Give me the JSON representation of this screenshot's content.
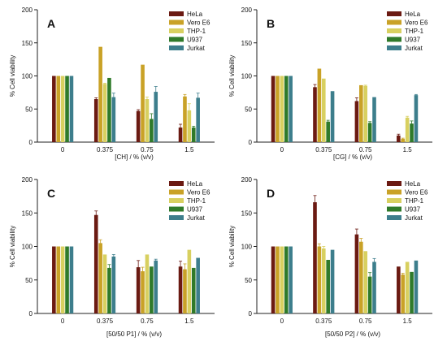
{
  "colors": {
    "HeLa": "#6b1a12",
    "Vero E6": "#c9a227",
    "THP-1": "#d8d060",
    "U937": "#2f7a2a",
    "Jurkat": "#3d7e8c"
  },
  "chart_data": [
    {
      "type": "bar",
      "panel_label": "A",
      "categories": [
        "0",
        "0.375",
        "0.75",
        "1.5"
      ],
      "xlabel": "[CH] / % (v/v)",
      "ylabel": "% Cell viability",
      "ylim": [
        0,
        200
      ],
      "yticks": [
        0,
        50,
        100,
        150,
        200
      ],
      "legend_position": "top-right",
      "series": [
        {
          "name": "HeLa",
          "values": [
            100,
            65,
            47,
            22
          ],
          "errors": [
            0,
            2,
            2,
            5
          ]
        },
        {
          "name": "Vero E6",
          "values": [
            100,
            144,
            117,
            69
          ],
          "errors": [
            0,
            0,
            0,
            3
          ]
        },
        {
          "name": "THP-1",
          "values": [
            100,
            88,
            65,
            48
          ],
          "errors": [
            0,
            1,
            3,
            10
          ]
        },
        {
          "name": "U937",
          "values": [
            100,
            97,
            35,
            22
          ],
          "errors": [
            0,
            0,
            8,
            2
          ]
        },
        {
          "name": "Jurkat",
          "values": [
            100,
            68,
            76,
            67
          ],
          "errors": [
            0,
            6,
            8,
            7
          ]
        }
      ]
    },
    {
      "type": "bar",
      "panel_label": "B",
      "categories": [
        "0",
        "0.375",
        "0.75",
        "1.5"
      ],
      "xlabel": "[CG] / % (v/v)",
      "ylabel": "% Cell viability",
      "ylim": [
        0,
        200
      ],
      "yticks": [
        0,
        50,
        100,
        150,
        200
      ],
      "legend_position": "top-right",
      "series": [
        {
          "name": "HeLa",
          "values": [
            100,
            83,
            62,
            10
          ],
          "errors": [
            0,
            4,
            5,
            2
          ]
        },
        {
          "name": "Vero E6",
          "values": [
            100,
            111,
            86,
            5
          ],
          "errors": [
            0,
            0,
            0,
            1
          ]
        },
        {
          "name": "THP-1",
          "values": [
            100,
            96,
            85,
            37
          ],
          "errors": [
            0,
            0,
            1,
            2
          ]
        },
        {
          "name": "U937",
          "values": [
            100,
            31,
            29,
            28
          ],
          "errors": [
            0,
            2,
            2,
            4
          ]
        },
        {
          "name": "Jurkat",
          "values": [
            100,
            77,
            68,
            71
          ],
          "errors": [
            0,
            0,
            0,
            1
          ]
        }
      ]
    },
    {
      "type": "bar",
      "panel_label": "C",
      "categories": [
        "0",
        "0.375",
        "0.75",
        "1.5"
      ],
      "xlabel": "[50/50 P1] / % (v/v)",
      "ylabel": "% Cell viability",
      "ylim": [
        0,
        200
      ],
      "yticks": [
        0,
        50,
        100,
        150,
        200
      ],
      "legend_position": "top-right",
      "series": [
        {
          "name": "HeLa",
          "values": [
            100,
            147,
            69,
            70
          ],
          "errors": [
            0,
            6,
            10,
            8
          ]
        },
        {
          "name": "Vero E6",
          "values": [
            100,
            105,
            63,
            66
          ],
          "errors": [
            0,
            5,
            6,
            8
          ]
        },
        {
          "name": "THP-1",
          "values": [
            100,
            88,
            88,
            95
          ],
          "errors": [
            0,
            0,
            0,
            0
          ]
        },
        {
          "name": "U937",
          "values": [
            100,
            68,
            70,
            68
          ],
          "errors": [
            0,
            5,
            0,
            0
          ]
        },
        {
          "name": "Jurkat",
          "values": [
            100,
            85,
            79,
            83
          ],
          "errors": [
            0,
            3,
            2,
            0
          ]
        }
      ]
    },
    {
      "type": "bar",
      "panel_label": "D",
      "categories": [
        "0",
        "0.375",
        "0.75",
        "1.5"
      ],
      "xlabel": "[50/50 P2] / % (v/v)",
      "ylabel": "% Cell viability",
      "ylim": [
        0,
        200
      ],
      "yticks": [
        0,
        50,
        100,
        150,
        200
      ],
      "legend_position": "top-right",
      "series": [
        {
          "name": "HeLa",
          "values": [
            100,
            166,
            118,
            70
          ],
          "errors": [
            0,
            10,
            8,
            0
          ]
        },
        {
          "name": "Vero E6",
          "values": [
            100,
            100,
            107,
            58
          ],
          "errors": [
            0,
            4,
            5,
            2
          ]
        },
        {
          "name": "THP-1",
          "values": [
            100,
            97,
            93,
            77
          ],
          "errors": [
            0,
            3,
            0,
            0
          ]
        },
        {
          "name": "U937",
          "values": [
            100,
            80,
            55,
            62
          ],
          "errors": [
            0,
            0,
            6,
            0
          ]
        },
        {
          "name": "Jurkat",
          "values": [
            100,
            95,
            77,
            79
          ],
          "errors": [
            0,
            0,
            5,
            0
          ]
        }
      ]
    }
  ]
}
